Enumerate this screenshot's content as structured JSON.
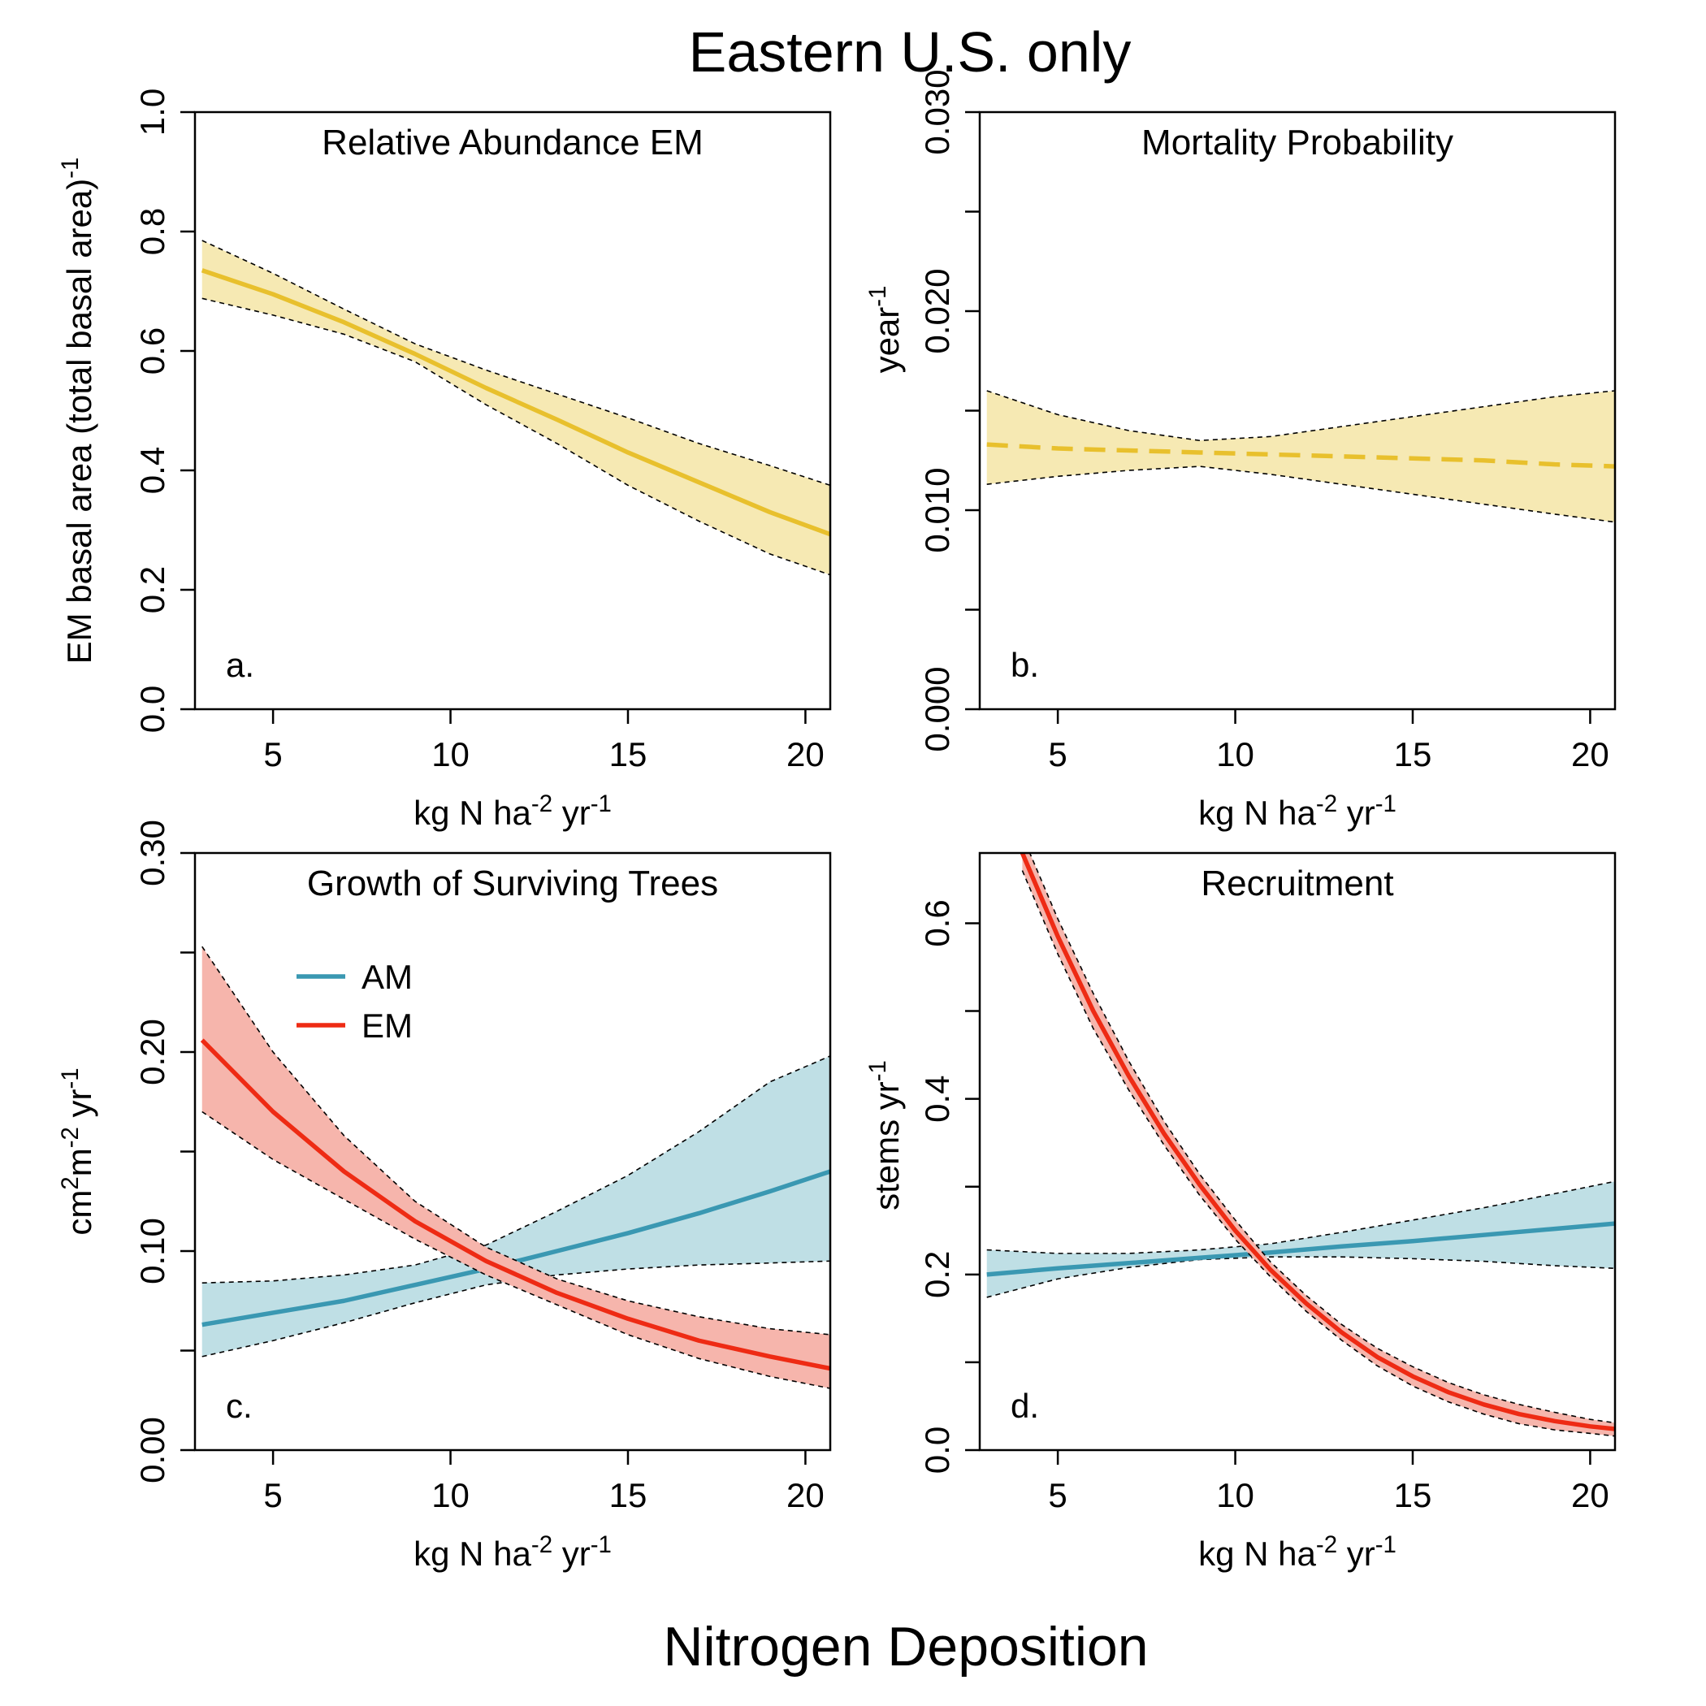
{
  "figure_title": "Eastern U.S. only",
  "outer_xlabel": "Nitrogen Deposition",
  "colors": {
    "em_relative": "#e8c02d",
    "em_relative_band": "#f6e9b3",
    "am": "#3a98b2",
    "am_band": "#bfdfe5",
    "em": "#ee2b14",
    "em_band": "#f6b5ac",
    "ci_line": "#000000"
  },
  "chart_data": [
    {
      "type": "line",
      "panel": "a",
      "title": "Relative Abundance EM",
      "letter": "a.",
      "xlabel": {
        "base": "kg N ha",
        "sup1": "-2",
        "mid": " yr",
        "sup2": "-1"
      },
      "ylabel": {
        "base": "EM basal area  (total basal area)",
        "sup": "-1"
      },
      "xlim": [
        2.8,
        20.7
      ],
      "ylim": [
        0,
        1.0
      ],
      "xticks": [
        5,
        10,
        15,
        20
      ],
      "xtick_labels": [
        "5",
        "10",
        "15",
        "20"
      ],
      "yticks": [
        0,
        0.2,
        0.4,
        0.6,
        0.8,
        1.0
      ],
      "ytick_labels": [
        "0.0",
        "0.2",
        "0.4",
        "0.6",
        "0.8",
        "1.0"
      ],
      "legend": null,
      "series": [
        {
          "color_key": "em_relative",
          "band_key": "em_relative_band",
          "dashed": false,
          "x": [
            3,
            5,
            7,
            9,
            11,
            13,
            15,
            17,
            19,
            20.7
          ],
          "mean": [
            0.735,
            0.695,
            0.648,
            0.595,
            0.538,
            0.485,
            0.43,
            0.38,
            0.33,
            0.293
          ],
          "lower": [
            0.688,
            0.66,
            0.628,
            0.582,
            0.51,
            0.445,
            0.375,
            0.315,
            0.26,
            0.225
          ],
          "upper": [
            0.785,
            0.73,
            0.67,
            0.612,
            0.568,
            0.528,
            0.488,
            0.445,
            0.408,
            0.375
          ]
        }
      ]
    },
    {
      "type": "line",
      "panel": "b",
      "title": "Mortality Probability",
      "letter": "b.",
      "xlabel": {
        "base": "kg N ha",
        "sup1": "-2",
        "mid": " yr",
        "sup2": "-1"
      },
      "ylabel": {
        "base": "year",
        "sup": "-1"
      },
      "xlim": [
        2.8,
        20.7
      ],
      "ylim": [
        0,
        0.03
      ],
      "xticks": [
        5,
        10,
        15,
        20
      ],
      "xtick_labels": [
        "5",
        "10",
        "15",
        "20"
      ],
      "yticks": [
        0,
        0.005,
        0.01,
        0.015,
        0.02,
        0.025,
        0.03
      ],
      "ytick_labels": [
        "0.000",
        "",
        "0.010",
        "",
        "0.020",
        "",
        "0.030"
      ],
      "legend": null,
      "series": [
        {
          "color_key": "em_relative",
          "band_key": "em_relative_band",
          "dashed": true,
          "x": [
            3,
            5,
            7,
            9,
            11,
            13,
            15,
            17,
            19,
            20.7
          ],
          "mean": [
            0.0133,
            0.0131,
            0.013,
            0.0129,
            0.0128,
            0.0127,
            0.0126,
            0.0125,
            0.0123,
            0.0122
          ],
          "lower": [
            0.0113,
            0.0117,
            0.012,
            0.0122,
            0.0118,
            0.0113,
            0.0108,
            0.0103,
            0.0098,
            0.0094
          ],
          "upper": [
            0.016,
            0.0148,
            0.014,
            0.0135,
            0.0137,
            0.0142,
            0.0147,
            0.0152,
            0.0157,
            0.016
          ]
        }
      ]
    },
    {
      "type": "line",
      "panel": "c",
      "title": "Growth of Surviving Trees",
      "letter": "c.",
      "xlabel": {
        "base": "kg N ha",
        "sup1": "-2",
        "mid": " yr",
        "sup2": "-1"
      },
      "ylabel": {
        "p1": "cm",
        "s1": "2",
        "p2": "m",
        "s2": "-2",
        "p3": " yr",
        "s3": "-1"
      },
      "xlim": [
        2.8,
        20.7
      ],
      "ylim": [
        0,
        0.3
      ],
      "xticks": [
        5,
        10,
        15,
        20
      ],
      "xtick_labels": [
        "5",
        "10",
        "15",
        "20"
      ],
      "yticks": [
        0,
        0.05,
        0.1,
        0.15,
        0.2,
        0.25,
        0.3
      ],
      "ytick_labels": [
        "0.00",
        "",
        "0.10",
        "",
        "0.20",
        "",
        "0.30"
      ],
      "legend": [
        {
          "label": "AM",
          "color_key": "am"
        },
        {
          "label": "EM",
          "color_key": "em"
        }
      ],
      "series": [
        {
          "name": "AM",
          "color_key": "am",
          "band_key": "am_band",
          "dashed": false,
          "x": [
            3,
            5,
            7,
            9,
            11,
            13,
            15,
            17,
            19,
            20.7
          ],
          "mean": [
            0.063,
            0.069,
            0.075,
            0.083,
            0.091,
            0.1,
            0.109,
            0.119,
            0.13,
            0.14
          ],
          "lower": [
            0.047,
            0.055,
            0.064,
            0.074,
            0.083,
            0.088,
            0.091,
            0.093,
            0.094,
            0.095
          ],
          "upper": [
            0.084,
            0.085,
            0.088,
            0.093,
            0.103,
            0.12,
            0.138,
            0.16,
            0.185,
            0.198
          ]
        },
        {
          "name": "EM",
          "color_key": "em",
          "band_key": "em_band",
          "dashed": false,
          "x": [
            3,
            5,
            7,
            9,
            11,
            13,
            15,
            17,
            19,
            20.7
          ],
          "mean": [
            0.206,
            0.17,
            0.14,
            0.115,
            0.095,
            0.079,
            0.066,
            0.055,
            0.047,
            0.041
          ],
          "lower": [
            0.17,
            0.146,
            0.126,
            0.106,
            0.088,
            0.073,
            0.058,
            0.046,
            0.037,
            0.031
          ],
          "upper": [
            0.253,
            0.2,
            0.158,
            0.125,
            0.102,
            0.086,
            0.075,
            0.067,
            0.061,
            0.058
          ]
        }
      ]
    },
    {
      "type": "line",
      "panel": "d",
      "title": "Recruitment",
      "letter": "d.",
      "xlabel": {
        "base": "kg N ha",
        "sup1": "-2",
        "mid": " yr",
        "sup2": "-1"
      },
      "ylabel": {
        "base": "stems yr",
        "sup": "-1"
      },
      "xlim": [
        2.8,
        20.7
      ],
      "ylim": [
        0,
        0.68
      ],
      "xticks": [
        5,
        10,
        15,
        20
      ],
      "xtick_labels": [
        "5",
        "10",
        "15",
        "20"
      ],
      "yticks": [
        0,
        0.1,
        0.2,
        0.3,
        0.4,
        0.5,
        0.6
      ],
      "ytick_labels": [
        "0.0",
        "",
        "0.2",
        "",
        "0.4",
        "",
        "0.6"
      ],
      "legend": null,
      "series": [
        {
          "name": "AM",
          "color_key": "am",
          "band_key": "am_band",
          "dashed": false,
          "x": [
            3,
            5,
            7,
            9,
            11,
            13,
            15,
            17,
            19,
            20.7
          ],
          "mean": [
            0.2,
            0.207,
            0.213,
            0.219,
            0.225,
            0.232,
            0.238,
            0.245,
            0.252,
            0.258
          ],
          "lower": [
            0.174,
            0.195,
            0.208,
            0.217,
            0.22,
            0.22,
            0.218,
            0.215,
            0.21,
            0.207
          ],
          "upper": [
            0.228,
            0.224,
            0.224,
            0.228,
            0.235,
            0.248,
            0.262,
            0.276,
            0.292,
            0.306
          ]
        },
        {
          "name": "EM",
          "color_key": "em",
          "band_key": "em_band",
          "dashed": false,
          "x": [
            4.0,
            5,
            6,
            7,
            8,
            9,
            10,
            11,
            12,
            13,
            14,
            15,
            16,
            17,
            18,
            19,
            20,
            20.7
          ],
          "mean": [
            0.68,
            0.585,
            0.5,
            0.426,
            0.36,
            0.302,
            0.25,
            0.205,
            0.167,
            0.134,
            0.106,
            0.084,
            0.066,
            0.052,
            0.041,
            0.033,
            0.027,
            0.024
          ],
          "lower": [
            0.66,
            0.565,
            0.48,
            0.41,
            0.347,
            0.29,
            0.24,
            0.197,
            0.158,
            0.125,
            0.096,
            0.073,
            0.055,
            0.041,
            0.03,
            0.023,
            0.019,
            0.016
          ],
          "upper": [
            0.7,
            0.605,
            0.52,
            0.443,
            0.374,
            0.314,
            0.262,
            0.214,
            0.176,
            0.143,
            0.116,
            0.095,
            0.077,
            0.063,
            0.052,
            0.043,
            0.035,
            0.031
          ]
        }
      ]
    }
  ]
}
